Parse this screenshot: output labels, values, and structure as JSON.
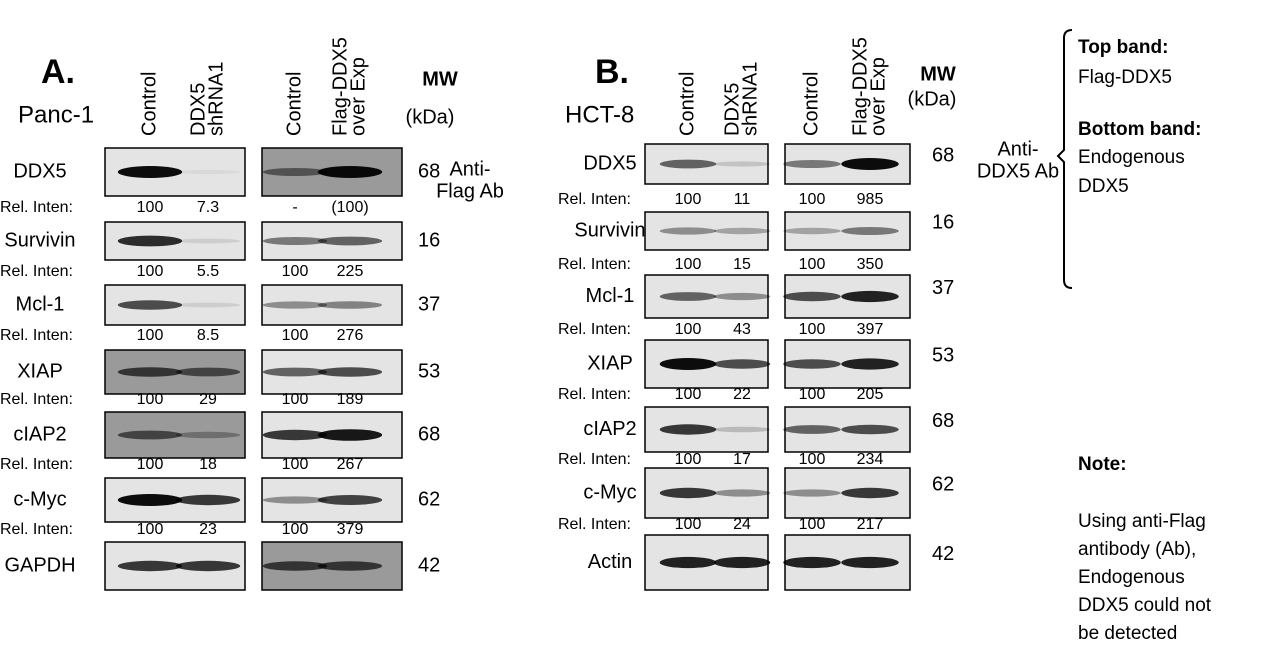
{
  "panels": [
    {
      "label": "A.",
      "cell_line": "Panc-1",
      "lanes": [
        [
          "Control"
        ],
        [
          "DDX5",
          "shRNA1"
        ],
        [
          "Control"
        ],
        [
          "Flag-DDX5",
          "over Exp"
        ]
      ],
      "mw_title": "MW",
      "mw_unit": "(kDa)",
      "antibody_note": [
        "Anti-",
        "Flag Ab"
      ],
      "rows": [
        {
          "protein": "DDX5",
          "mw": "68",
          "rel_label": "Rel. Inten:",
          "rel": [
            "100",
            "7.3",
            "-",
            "(100)"
          ]
        },
        {
          "protein": "Survivin",
          "mw": "16",
          "rel_label": "Rel. Inten:",
          "rel": [
            "100",
            "5.5",
            "100",
            "225"
          ]
        },
        {
          "protein": "Mcl-1",
          "mw": "37",
          "rel_label": "Rel. Inten:",
          "rel": [
            "100",
            "8.5",
            "100",
            "276"
          ]
        },
        {
          "protein": "XIAP",
          "mw": "53",
          "rel_label": "Rel. Inten:",
          "rel": [
            "100",
            "29",
            "100",
            "189"
          ]
        },
        {
          "protein": "cIAP2",
          "mw": "68",
          "rel_label": "Rel. Inten:",
          "rel": [
            "100",
            "18",
            "100",
            "267"
          ]
        },
        {
          "protein": "c-Myc",
          "mw": "62",
          "rel_label": "Rel. Inten:",
          "rel": [
            "100",
            "23",
            "100",
            "379"
          ]
        },
        {
          "protein": "GAPDH",
          "mw": "42"
        }
      ]
    },
    {
      "label": "B.",
      "cell_line": "HCT-8",
      "lanes": [
        [
          "Control"
        ],
        [
          "DDX5",
          "shRNA1"
        ],
        [
          "Control"
        ],
        [
          "Flag-DDX5",
          "over Exp"
        ]
      ],
      "mw_title": "MW",
      "mw_unit": "(kDa)",
      "antibody_note": [
        "Anti-",
        "DDX5 Ab"
      ],
      "rows": [
        {
          "protein": "DDX5",
          "mw": "68",
          "rel_label": "Rel. Inten:",
          "rel": [
            "100",
            "11",
            "100",
            "985"
          ]
        },
        {
          "protein": "Survivin",
          "mw": "16",
          "rel_label": "Rel. Inten:",
          "rel": [
            "100",
            "15",
            "100",
            "350"
          ]
        },
        {
          "protein": "Mcl-1",
          "mw": "37",
          "rel_label": "Rel. Inten:",
          "rel": [
            "100",
            "43",
            "100",
            "397"
          ]
        },
        {
          "protein": "XIAP",
          "mw": "53",
          "rel_label": "Rel. Inten:",
          "rel": [
            "100",
            "22",
            "100",
            "205"
          ]
        },
        {
          "protein": "cIAP2",
          "mw": "68",
          "rel_label": "Rel. Inten:",
          "rel": [
            "100",
            "17",
            "100",
            "234"
          ]
        },
        {
          "protein": "c-Myc",
          "mw": "62",
          "rel_label": "Rel. Inten:",
          "rel": [
            "100",
            "24",
            "100",
            "217"
          ]
        },
        {
          "protein": "Actin",
          "mw": "42"
        }
      ]
    }
  ],
  "legend": {
    "top_title": "Top band:",
    "top_text": "Flag-DDX5",
    "bottom_title": "Bottom band:",
    "bottom_text": [
      "Endogenous",
      "DDX5"
    ]
  },
  "note": {
    "title": "Note:",
    "lines": [
      "Using anti-Flag",
      "antibody (Ab),",
      "Endogenous",
      "DDX5 could not",
      "be detected"
    ]
  }
}
